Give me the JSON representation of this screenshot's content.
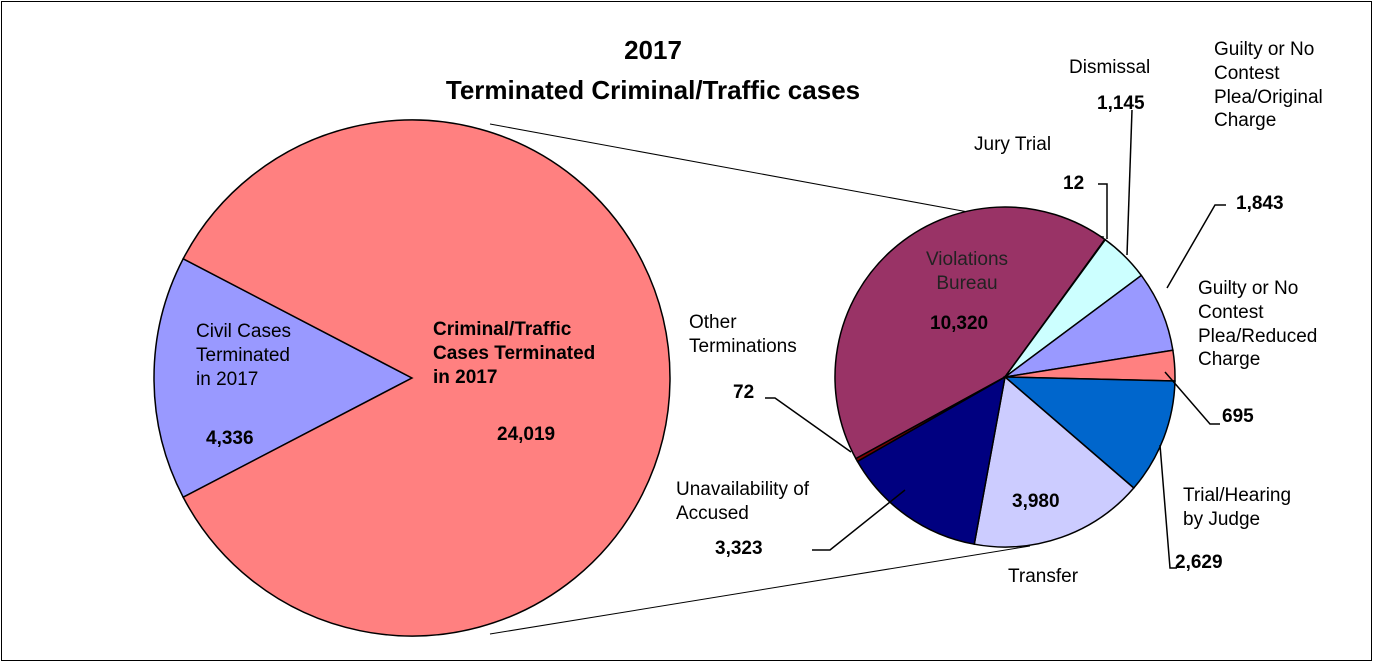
{
  "chart_data": {
    "type": "pie-of-pie",
    "title": "2017\nTerminated Criminal/Traffic cases",
    "categories": [
      "Civil Cases\nTerminated\nin 2017",
      "Criminal/Traffic\nCases Terminated\nin 2017"
    ],
    "values": [
      4336,
      24019
    ],
    "value_labels": [
      "4,336",
      "24,019"
    ],
    "colors": [
      "#9999ff",
      "#ff8080"
    ],
    "breakdown": {
      "categories": [
        "Violations\nBureau",
        "Jury Trial",
        "Dismissal",
        "Guilty or No\nContest\nPlea/Original\nCharge",
        "Guilty or No\nContest\nPlea/Reduced\nCharge",
        "Trial/Hearing\nby Judge",
        "Transfer",
        "Unavailability of\nAccused",
        "Other\nTerminations"
      ],
      "values": [
        10320,
        12,
        1145,
        1843,
        695,
        2629,
        3980,
        3323,
        72
      ],
      "value_labels": [
        "10,320",
        "12",
        "1,145",
        "1,843",
        "695",
        "2,629",
        "3,980",
        "3,323",
        "72"
      ],
      "colors": [
        "#993366",
        "#ffffcc",
        "#ccffff",
        "#9999ff",
        "#ff8080",
        "#0066cc",
        "#ccccff",
        "#000080",
        "#800000"
      ]
    }
  }
}
